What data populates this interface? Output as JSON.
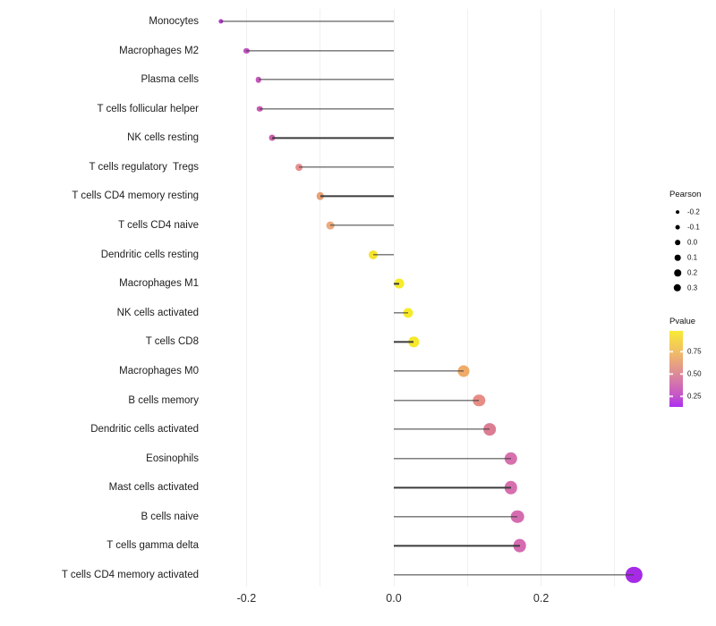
{
  "chart_data": {
    "type": "scatter",
    "variant": "lollipop",
    "title": "",
    "xlabel": "",
    "ylabel": "",
    "grid": true,
    "axis_range": [
      -0.27,
      0.35
    ],
    "gridline_values": [
      -0.2,
      -0.1,
      0.0,
      0.1,
      0.2,
      0.3
    ],
    "x_ticks": [
      {
        "label": "-0.2",
        "value": -0.2
      },
      {
        "label": "0.0",
        "value": 0.0
      },
      {
        "label": "0.2",
        "value": 0.2
      }
    ],
    "points": [
      {
        "label": "Monocytes",
        "pearson": -0.235,
        "color": "#B03EC6"
      },
      {
        "label": "Macrophages M2",
        "pearson": -0.2,
        "color": "#C250C1"
      },
      {
        "label": "Plasma cells",
        "pearson": -0.184,
        "color": "#C657B8"
      },
      {
        "label": "T cells follicular helper",
        "pearson": -0.182,
        "color": "#C85CB2"
      },
      {
        "label": "NK cells resting",
        "pearson": -0.165,
        "color": "#CB5EA8"
      },
      {
        "label": "T cells regulatory  Tregs",
        "pearson": -0.129,
        "color": "#E78F90"
      },
      {
        "label": "T cells CD4 memory resting",
        "pearson": -0.1,
        "color": "#E9A176"
      },
      {
        "label": "T cells CD4 naive",
        "pearson": -0.086,
        "color": "#ECAA7D"
      },
      {
        "label": "Dendritic cells resting",
        "pearson": -0.028,
        "color": "#F5E32D"
      },
      {
        "label": "Macrophages M1",
        "pearson": 0.007,
        "color": "#F7EB29"
      },
      {
        "label": "NK cells activated",
        "pearson": 0.019,
        "color": "#F7EB29"
      },
      {
        "label": "T cells CD8",
        "pearson": 0.027,
        "color": "#F6E82B"
      },
      {
        "label": "Macrophages M0",
        "pearson": 0.095,
        "color": "#F0AB68"
      },
      {
        "label": "B cells memory",
        "pearson": 0.116,
        "color": "#E68D86"
      },
      {
        "label": "Dendritic cells activated",
        "pearson": 0.13,
        "color": "#DC7D93"
      },
      {
        "label": "Eosinophils",
        "pearson": 0.159,
        "color": "#D771AD"
      },
      {
        "label": "Mast cells activated",
        "pearson": 0.159,
        "color": "#D76FAE"
      },
      {
        "label": "B cells naive",
        "pearson": 0.168,
        "color": "#D56CB0"
      },
      {
        "label": "T cells gamma delta",
        "pearson": 0.171,
        "color": "#D56BB1"
      },
      {
        "label": "T cells CD4 memory activated",
        "pearson": 0.326,
        "color": "#A52BE5"
      }
    ],
    "legend_size": {
      "title": "Pearson",
      "entries": [
        {
          "label": "-0.2",
          "value": -0.2
        },
        {
          "label": "-0.1",
          "value": -0.1
        },
        {
          "label": "0.0",
          "value": 0.0
        },
        {
          "label": "0.1",
          "value": 0.1
        },
        {
          "label": "0.2",
          "value": 0.2
        },
        {
          "label": "0.3",
          "value": 0.3
        }
      ]
    },
    "legend_color": {
      "title": "Pvalue",
      "labels": [
        "0.75",
        "0.50",
        "0.25"
      ],
      "gradient_top_to_bottom": [
        "#F8EB34",
        "#F1BE65",
        "#DE8B97",
        "#C453CC",
        "#AC2EF1"
      ]
    },
    "stem_color": "#3c3c3c",
    "gridline_color": "#f0f0f0"
  }
}
